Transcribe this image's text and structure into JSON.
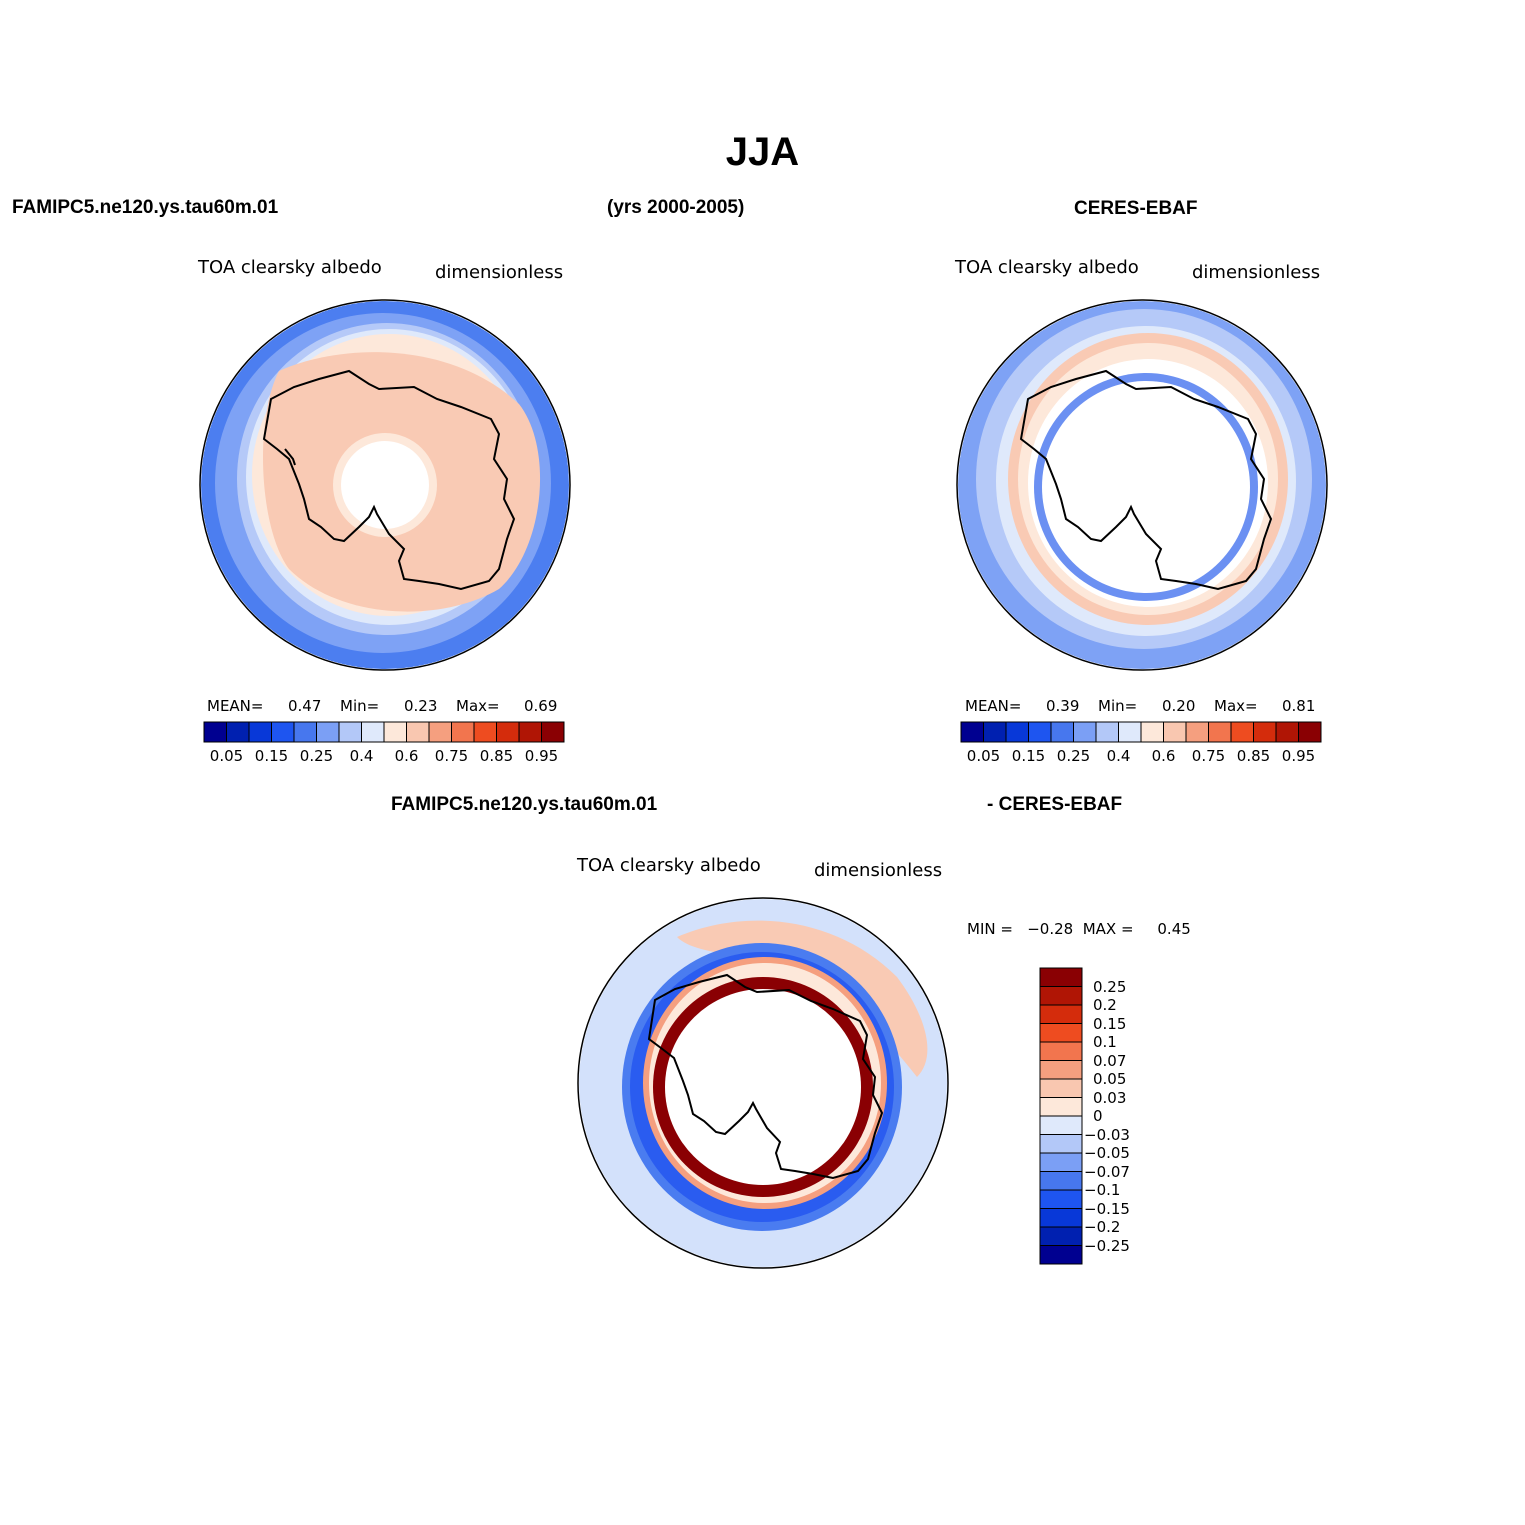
{
  "title": "JJA",
  "top_headers": {
    "left": "FAMIPC5.ne120.ys.tau60m.01",
    "center": "(yrs 2000-2005)",
    "right": "CERES-EBAF"
  },
  "panel_model": {
    "variable": "TOA clearsky albedo",
    "units": "dimensionless",
    "stats": {
      "mean_label": "MEAN=",
      "mean": "0.47",
      "min_label": "Min=",
      "min": "0.23",
      "max_label": "Max=",
      "max": "0.69"
    }
  },
  "panel_obs": {
    "variable": "TOA clearsky albedo",
    "units": "dimensionless",
    "stats": {
      "mean_label": "MEAN=",
      "mean": "0.39",
      "min_label": "Min=",
      "min": "0.20",
      "max_label": "Max=",
      "max": "0.81"
    }
  },
  "albedo_colorbar": {
    "colors": [
      "#000090",
      "#0020b0",
      "#0838d8",
      "#1e55f0",
      "#4777ee",
      "#7b9ff5",
      "#b3c8f8",
      "#dfe9fb",
      "#fde8da",
      "#f9c7b0",
      "#f59f7f",
      "#f2754e",
      "#ee4c20",
      "#d42c0c",
      "#b01505",
      "#8a0003"
    ],
    "tick_labels": [
      "0.05",
      "0.15",
      "0.25",
      "0.4",
      "0.6",
      "0.75",
      "0.85",
      "0.95"
    ]
  },
  "diff_panel": {
    "header_left": "FAMIPC5.ne120.ys.tau60m.01",
    "header_right": "- CERES-EBAF",
    "variable": "TOA clearsky albedo",
    "units": "dimensionless",
    "range_text": "MIN =   −0.28  MAX =     0.45",
    "colorbar": {
      "colors_top_to_bottom": [
        "#8a0003",
        "#b01505",
        "#d42c0c",
        "#ee4c20",
        "#f2754e",
        "#f59f7f",
        "#f9c7b0",
        "#fde8da",
        "#dfe9fb",
        "#b3c8f8",
        "#7b9ff5",
        "#4777ee",
        "#1e55f0",
        "#0838d8",
        "#0020b0",
        "#000090"
      ],
      "tick_labels": [
        "0.25",
        "0.2",
        "0.15",
        "0.1",
        "0.07",
        "0.05",
        "0.03",
        "0",
        "−0.03",
        "−0.05",
        "−0.07",
        "−0.1",
        "−0.15",
        "−0.2",
        "−0.25"
      ]
    }
  }
}
